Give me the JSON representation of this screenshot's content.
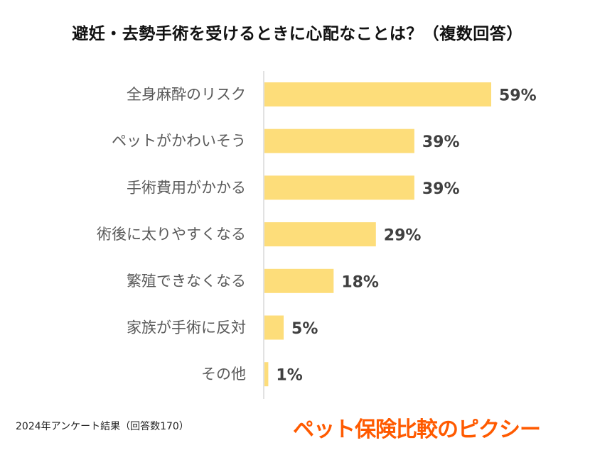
{
  "title": "避妊・去勢手術を受けるときに心配なことは？（複数回答）",
  "footnote": "2024年アンケート結果（回答数170）",
  "brand": "ペット保険比較のピクシー",
  "colors": {
    "bar": "#fddd7a",
    "axis": "#d9d9d9",
    "brand": "#ff5a00"
  },
  "chart_data": {
    "type": "bar",
    "orientation": "horizontal",
    "title": "避妊・去勢手術を受けるときに心配なことは？（複数回答）",
    "categories": [
      "全身麻酔のリスク",
      "ペットがかわいそう",
      "手術費用がかかる",
      "術後に太りやすくなる",
      "繁殖できなくなる",
      "家族が手術に反対",
      "その他"
    ],
    "values": [
      59,
      39,
      39,
      29,
      18,
      5,
      1
    ],
    "value_labels": [
      "59%",
      "39%",
      "39%",
      "29%",
      "18%",
      "5%",
      "1%"
    ],
    "unit": "%",
    "xlim": [
      0,
      100
    ],
    "xlabel": "",
    "ylabel": "",
    "grid": false,
    "legend": "none"
  }
}
